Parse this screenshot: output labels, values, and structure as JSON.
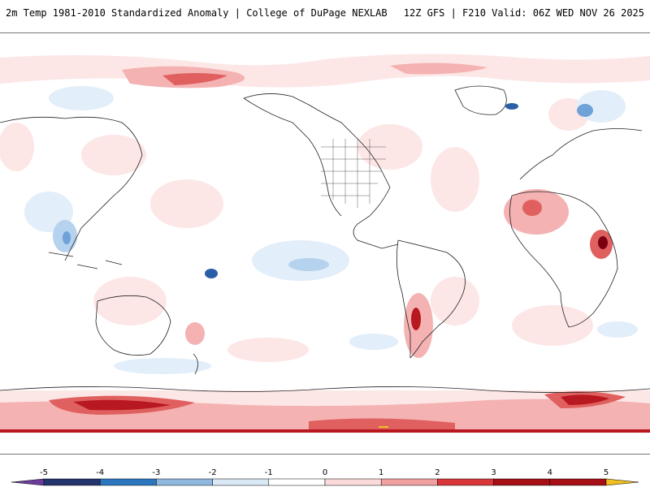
{
  "header": {
    "left_title": "2m Temp 1981-2010 Standardized Anomaly | College of DuPage NEXLAB",
    "right_title": "12Z GFS | F210 Valid: 06Z WED NOV 26 2025"
  },
  "colorbar": {
    "ticks": [
      "-5",
      "-4",
      "-3",
      "-2",
      "-1",
      "0",
      "1",
      "2",
      "3",
      "4",
      "5"
    ],
    "colors": [
      "#6a3d9a",
      "#24346e",
      "#2b77bf",
      "#8fb8df",
      "#d9e8f5",
      "#ffffff",
      "#fbdada",
      "#f0a0a0",
      "#d9363a",
      "#a50f15",
      "#f0c020"
    ]
  },
  "map": {
    "land_color": "#ffffff",
    "coast_color": "#222222",
    "warm_colors": [
      "#fde6e6",
      "#f4b2b2",
      "#e06060",
      "#b81820",
      "#7a0010"
    ],
    "cold_colors": [
      "#e2eef9",
      "#b5d2ee",
      "#6fa2d8",
      "#2a5fa8"
    ]
  }
}
